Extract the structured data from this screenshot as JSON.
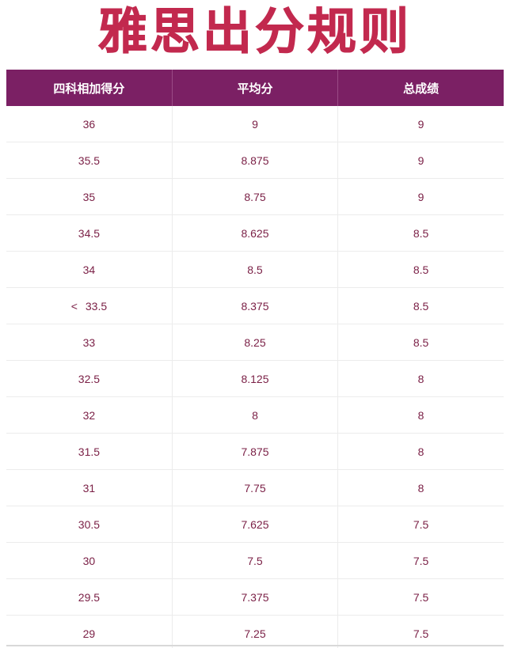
{
  "title": "雅思出分规则",
  "table": {
    "headers": [
      "四科相加得分",
      "平均分",
      "总成绩"
    ],
    "rows": [
      [
        "36",
        "9",
        "9"
      ],
      [
        "35.5",
        "8.875",
        "9"
      ],
      [
        "35",
        "8.75",
        "9"
      ],
      [
        "34.5",
        "8.625",
        "8.5"
      ],
      [
        "34",
        "8.5",
        "8.5"
      ],
      [
        "33.5",
        "8.375",
        "8.5"
      ],
      [
        "33",
        "8.25",
        "8.5"
      ],
      [
        "32.5",
        "8.125",
        "8"
      ],
      [
        "32",
        "8",
        "8"
      ],
      [
        "31.5",
        "7.875",
        "8"
      ],
      [
        "31",
        "7.75",
        "8"
      ],
      [
        "30.5",
        "7.625",
        "7.5"
      ],
      [
        "30",
        "7.5",
        "7.5"
      ],
      [
        "29.5",
        "7.375",
        "7.5"
      ],
      [
        "29",
        "7.25",
        "7.5"
      ]
    ],
    "row6_marker": "<"
  }
}
